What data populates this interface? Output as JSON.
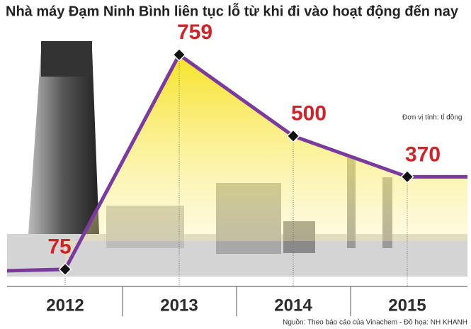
{
  "chart_data": {
    "type": "line",
    "title": "Nhà máy Đạm Ninh Bình liên tục lỗ từ khi đi vào hoạt động đến nay",
    "unit_note": "Đơn vị tính: tỉ đồng",
    "source": "Nguồn: Theo báo cáo của Vinachem - Đồ họa: NH KHANH",
    "categories": [
      "2012",
      "2013",
      "2014",
      "2015"
    ],
    "values": [
      75,
      759,
      500,
      370
    ],
    "color": "#7b3a9e",
    "label_color": "#d2232a",
    "ylim": [
      0,
      850
    ]
  }
}
